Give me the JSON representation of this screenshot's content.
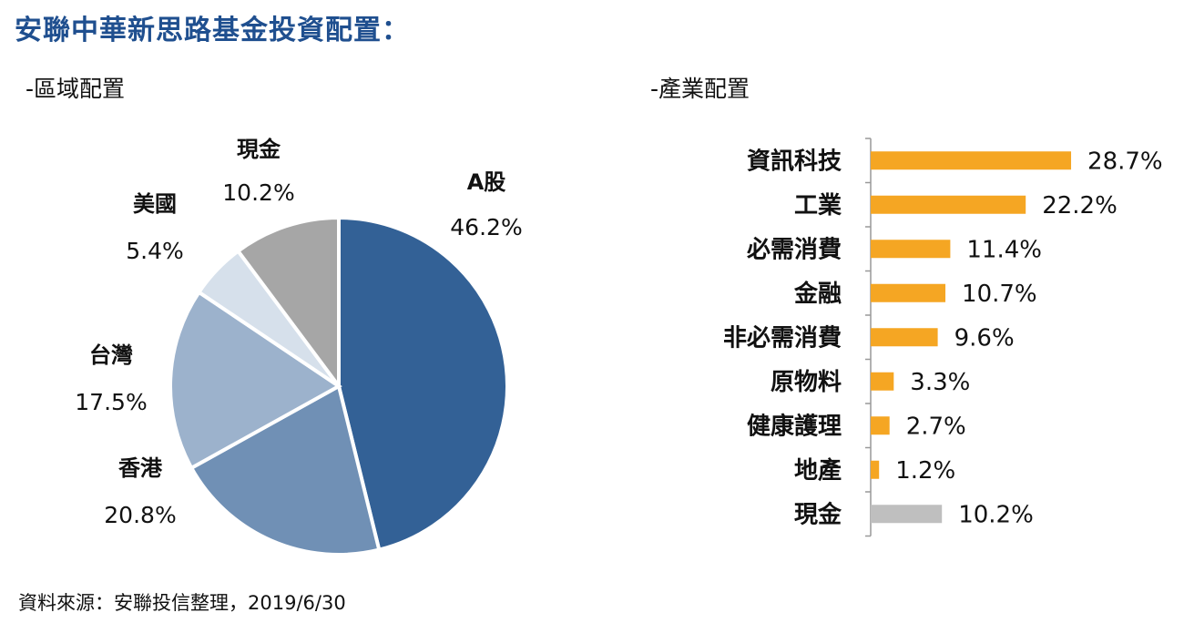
{
  "title": "安聯中華新思路基金投資配置：",
  "sections": {
    "region": "-區域配置",
    "industry": "-產業配置"
  },
  "source": "資料來源：安聯投信整理，2019/6/30",
  "chart_data": [
    {
      "type": "pie",
      "title": "-區域配置",
      "slices": [
        {
          "label": "A股",
          "value": 46.2,
          "value_label": "46.2%",
          "color": "#336196"
        },
        {
          "label": "香港",
          "value": 20.8,
          "value_label": "20.8%",
          "color": "#7090b5"
        },
        {
          "label": "台灣",
          "value": 17.5,
          "value_label": "17.5%",
          "color": "#9cb2cc"
        },
        {
          "label": "美國",
          "value": 5.4,
          "value_label": "5.4%",
          "color": "#d6e0eb"
        },
        {
          "label": "現金",
          "value": 10.2,
          "value_label": "10.2%",
          "color": "#a6a6a6"
        }
      ],
      "start": "12 o'clock, clockwise"
    },
    {
      "type": "bar",
      "orientation": "horizontal",
      "title": "-產業配置",
      "categories": [
        "資訊科技",
        "工業",
        "必需消費",
        "金融",
        "非必需消費",
        "原物料",
        "健康護理",
        "地產",
        "現金"
      ],
      "values": [
        28.7,
        22.2,
        11.4,
        10.7,
        9.6,
        3.3,
        2.7,
        1.2,
        10.2
      ],
      "value_labels": [
        "28.7%",
        "22.2%",
        "11.4%",
        "10.7%",
        "9.6%",
        "3.3%",
        "2.7%",
        "1.2%",
        "10.2%"
      ],
      "colors": [
        "#f5a623",
        "#f5a623",
        "#f5a623",
        "#f5a623",
        "#f5a623",
        "#f5a623",
        "#f5a623",
        "#f5a623",
        "#bfbfbf"
      ],
      "xlim": [
        0,
        30
      ],
      "grid": false
    }
  ]
}
